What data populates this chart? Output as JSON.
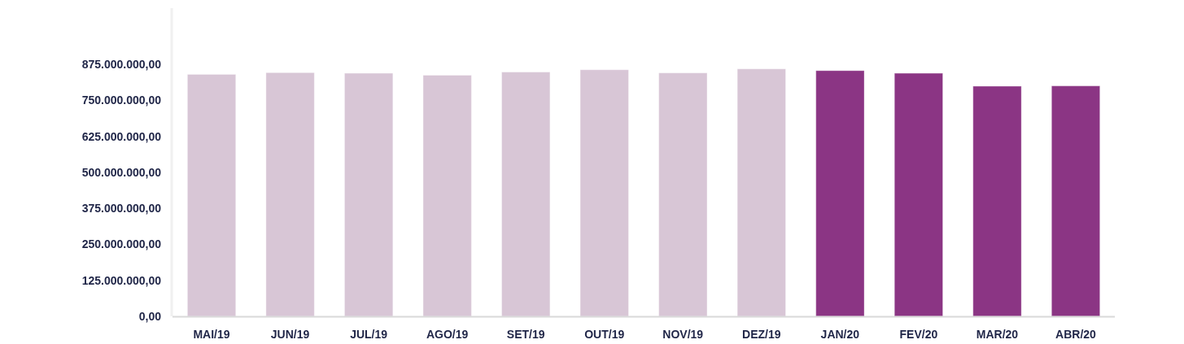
{
  "chart_data": {
    "type": "bar",
    "categories": [
      "MAI/19",
      "JUN/19",
      "JUL/19",
      "AGO/19",
      "SET/19",
      "OUT/19",
      "NOV/19",
      "DEZ/19",
      "JAN/20",
      "FEV/20",
      "MAR/20",
      "ABR/20"
    ],
    "values": [
      840000000,
      846000000,
      844000000,
      837000000,
      848000000,
      856000000,
      845000000,
      859000000,
      853000000,
      844000000,
      799000000,
      800000000
    ],
    "colors": [
      "#d8c6d6",
      "#d8c6d6",
      "#d8c6d6",
      "#d8c6d6",
      "#d8c6d6",
      "#d8c6d6",
      "#d8c6d6",
      "#d8c6d6",
      "#8b3584",
      "#8b3584",
      "#8b3584",
      "#8b3584"
    ],
    "ylim": [
      0,
      1070000000
    ],
    "yticks": [
      {
        "value": 0,
        "label": "0,00"
      },
      {
        "value": 125000000,
        "label": "125.000.000,00"
      },
      {
        "value": 250000000,
        "label": "250.000.000,00"
      },
      {
        "value": 375000000,
        "label": "375.000.000,00"
      },
      {
        "value": 500000000,
        "label": "500.000.000,00"
      },
      {
        "value": 625000000,
        "label": "625.000.000,00"
      },
      {
        "value": 750000000,
        "label": "750.000.000,00"
      },
      {
        "value": 875000000,
        "label": "875.000.000,00"
      }
    ],
    "grid": false
  }
}
